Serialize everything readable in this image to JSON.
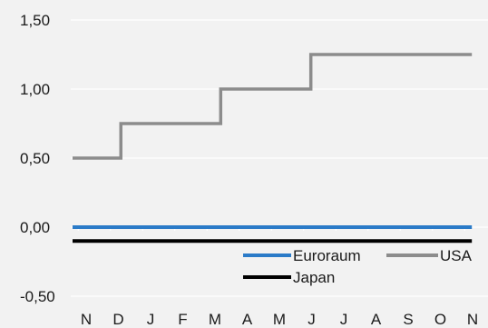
{
  "chart_data": {
    "type": "line",
    "title": "",
    "xlabel": "",
    "ylabel": "",
    "ylim": [
      -0.5,
      1.5
    ],
    "yticks": [
      "1,50",
      "1,00",
      "0,50",
      "0,00",
      "-0,50"
    ],
    "ytick_values": [
      1.5,
      1.0,
      0.5,
      0.0,
      -0.5
    ],
    "categories": [
      "N",
      "D",
      "J",
      "F",
      "M",
      "A",
      "M",
      "J",
      "J",
      "A",
      "S",
      "O",
      "N"
    ],
    "grid": true,
    "legend_position": "bottom-right",
    "series": [
      {
        "name": "Euroraum",
        "color": "#2b7bc8",
        "step": true,
        "points": [
          [
            0,
            0.0
          ],
          [
            12.4,
            0.0
          ]
        ]
      },
      {
        "name": "USA",
        "color": "#8c8c8c",
        "step": true,
        "points": [
          [
            0,
            0.5
          ],
          [
            1.5,
            0.5
          ],
          [
            1.5,
            0.75
          ],
          [
            4.6,
            0.75
          ],
          [
            4.6,
            1.0
          ],
          [
            7.4,
            1.0
          ],
          [
            7.4,
            1.25
          ],
          [
            12.4,
            1.25
          ]
        ]
      },
      {
        "name": "Japan",
        "color": "#000000",
        "step": true,
        "points": [
          [
            0,
            -0.1
          ],
          [
            12.4,
            -0.1
          ]
        ]
      }
    ]
  }
}
